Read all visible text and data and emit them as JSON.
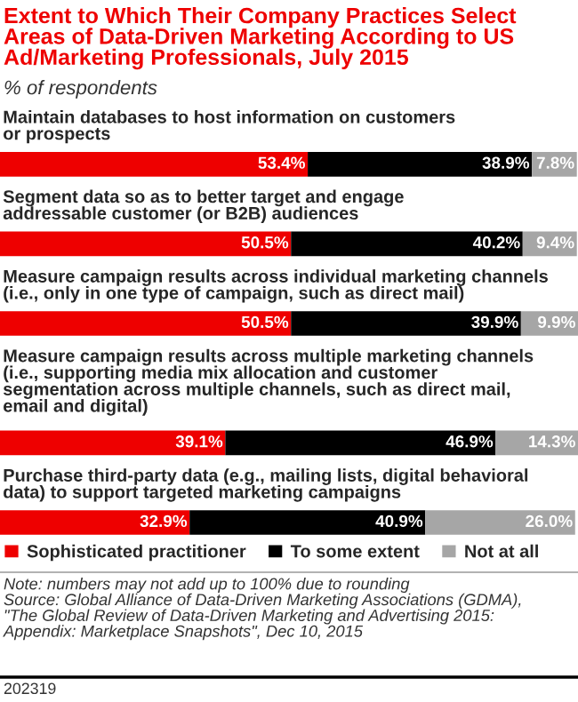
{
  "chart_data": {
    "type": "bar",
    "orientation": "horizontal",
    "stacked": true,
    "legend": "bottom",
    "tick_labels": false,
    "title": "Extent to Which Their Company Practices Select\nAreas of Data-Driven Marketing According to US\nAd/Marketing Professionals, July 2015",
    "subtitle": "% of respondents",
    "categories": [
      "Maintain databases to host information on customers\nor prospects",
      "Segment data so as to better target and engage\naddressable customer (or B2B) audiences",
      "Measure campaign results across individual marketing channels\n(i.e., only in one type of campaign, such as direct mail)",
      "Measure campaign results across multiple marketing channels\n(i.e., supporting media mix allocation and customer\nsegmentation across multiple channels, such as direct mail,\nemail and digital)",
      "Purchase third-party data (e.g., mailing lists, digital behavioral\ndata) to support targeted marketing campaigns"
    ],
    "series": [
      {
        "name": "Sophisticated practitioner",
        "color": "#ee0000",
        "values": [
          53.4,
          50.5,
          50.5,
          39.1,
          32.9
        ],
        "value_labels": [
          "53.4%",
          "50.5%",
          "50.5%",
          "39.1%",
          "32.9%"
        ]
      },
      {
        "name": "To some extent",
        "color": "#000000",
        "values": [
          38.9,
          40.2,
          39.9,
          46.9,
          40.9
        ],
        "value_labels": [
          "38.9%",
          "40.2%",
          "39.9%",
          "46.9%",
          "40.9%"
        ]
      },
      {
        "name": "Not at all",
        "color": "#a6a6a6",
        "values": [
          7.8,
          9.4,
          9.9,
          14.3,
          26.0
        ],
        "value_labels": [
          "7.8%",
          "9.4%",
          "9.9%",
          "14.3%",
          "26.0%"
        ]
      }
    ],
    "annotations": [
      "Note: numbers may not add up to 100% due to rounding\nSource: Global Alliance of Data-Driven Marketing Associations (GDMA),\n\"The Global Review of Data-Driven Marketing and Advertising 2015:\nAppendix: Marketplace Snapshots\", Dec 10, 2015",
      "202319"
    ]
  }
}
